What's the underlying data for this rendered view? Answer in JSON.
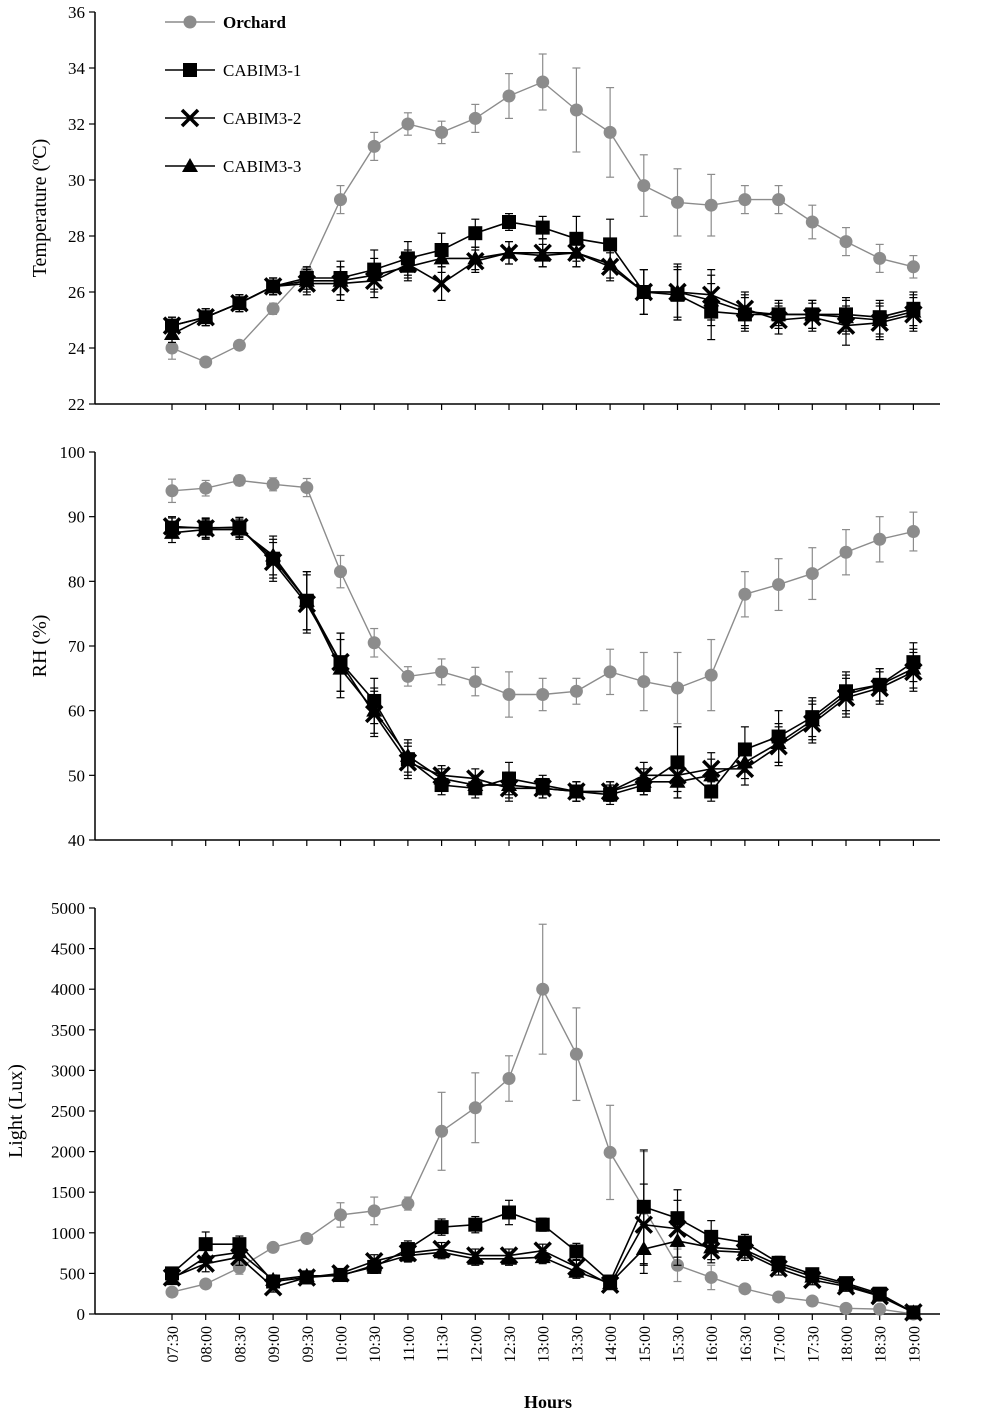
{
  "colors": {
    "orchard": "#8c8c8c",
    "cabim": "#000000",
    "axis": "#000000"
  },
  "legend": {
    "position": "top-left",
    "entries": [
      {
        "label": "Orchard",
        "marker": "circle"
      },
      {
        "label": "CABIM3-1",
        "marker": "square"
      },
      {
        "label": "CABIM3-2",
        "marker": "cross"
      },
      {
        "label": "CABIM3-3",
        "marker": "triangle"
      }
    ]
  },
  "chart_data": [
    {
      "type": "line",
      "ylabel": "Temperature (ºC)",
      "ylim": [
        22,
        36
      ],
      "yticks": [
        22,
        24,
        26,
        28,
        30,
        32,
        34,
        36
      ],
      "error_bars": true,
      "series": [
        {
          "name": "Orchard",
          "marker": "circle",
          "values": [
            24.0,
            23.5,
            24.1,
            25.4,
            26.7,
            29.3,
            31.2,
            32.0,
            31.7,
            32.2,
            33.0,
            33.5,
            32.5,
            31.7,
            29.8,
            29.2,
            29.1,
            29.3,
            29.3,
            28.5,
            27.8,
            27.2,
            26.9
          ],
          "errors": [
            0.4,
            0.1,
            0.1,
            0.2,
            0.2,
            0.5,
            0.5,
            0.4,
            0.4,
            0.5,
            0.8,
            1.0,
            1.5,
            1.6,
            1.1,
            1.2,
            1.1,
            0.5,
            0.5,
            0.6,
            0.5,
            0.5,
            0.4
          ]
        },
        {
          "name": "CABIM3-1",
          "marker": "square",
          "values": [
            24.8,
            25.1,
            25.6,
            26.2,
            26.5,
            26.5,
            26.8,
            27.2,
            27.5,
            28.1,
            28.5,
            28.3,
            27.9,
            27.7,
            26.0,
            25.9,
            25.3,
            25.2,
            25.2,
            25.2,
            25.2,
            25.1,
            25.4
          ],
          "errors": [
            0.3,
            0.3,
            0.3,
            0.3,
            0.4,
            0.6,
            0.7,
            0.6,
            0.6,
            0.5,
            0.3,
            0.4,
            0.8,
            0.9,
            0.8,
            0.9,
            1.0,
            0.6,
            0.4,
            0.5,
            0.6,
            0.6,
            0.6
          ]
        },
        {
          "name": "CABIM3-2",
          "marker": "cross",
          "values": [
            24.8,
            25.1,
            25.6,
            26.2,
            26.3,
            26.3,
            26.4,
            27.0,
            26.3,
            27.1,
            27.4,
            27.4,
            27.4,
            26.9,
            26.0,
            26.0,
            25.9,
            25.4,
            25.0,
            25.1,
            24.8,
            24.9,
            25.2
          ],
          "errors": [
            0.3,
            0.3,
            0.3,
            0.3,
            0.4,
            0.6,
            0.6,
            0.5,
            0.6,
            0.4,
            0.4,
            0.5,
            0.5,
            0.5,
            0.8,
            1.0,
            0.9,
            0.6,
            0.5,
            0.5,
            0.7,
            0.6,
            0.6
          ]
        },
        {
          "name": "CABIM3-3",
          "marker": "triangle",
          "values": [
            24.5,
            25.1,
            25.6,
            26.2,
            26.4,
            26.4,
            26.6,
            26.9,
            27.2,
            27.2,
            27.4,
            27.3,
            27.4,
            27.0,
            26.0,
            26.0,
            25.7,
            25.3,
            25.2,
            25.2,
            25.1,
            25.0,
            25.3
          ],
          "errors": [
            0.3,
            0.3,
            0.3,
            0.3,
            0.4,
            0.5,
            0.6,
            0.5,
            0.5,
            0.4,
            0.4,
            0.4,
            0.5,
            0.5,
            0.8,
            0.9,
            0.9,
            0.6,
            0.5,
            0.5,
            0.6,
            0.6,
            0.6
          ]
        }
      ]
    },
    {
      "type": "line",
      "ylabel": "RH (%)",
      "ylim": [
        40,
        100
      ],
      "yticks": [
        40,
        50,
        60,
        70,
        80,
        90,
        100
      ],
      "error_bars": true,
      "series": [
        {
          "name": "Orchard",
          "marker": "circle",
          "values": [
            94.0,
            94.4,
            95.6,
            95.0,
            94.5,
            81.5,
            70.5,
            65.3,
            66.0,
            64.5,
            62.5,
            62.5,
            63.0,
            66.0,
            64.5,
            63.5,
            65.5,
            78.0,
            79.5,
            81.2,
            84.5,
            86.5,
            87.7
          ],
          "errors": [
            1.8,
            1.2,
            0.8,
            1.0,
            1.4,
            2.5,
            2.2,
            1.5,
            2.0,
            2.2,
            3.5,
            2.5,
            2.0,
            3.5,
            4.5,
            5.5,
            5.5,
            3.5,
            4.0,
            4.0,
            3.5,
            3.5,
            3.0
          ]
        },
        {
          "name": "CABIM3-1",
          "marker": "square",
          "values": [
            88.3,
            88.3,
            88.3,
            83.5,
            77.0,
            67.5,
            61.5,
            52.5,
            48.5,
            48.0,
            49.5,
            48.5,
            47.5,
            47.0,
            48.5,
            52.0,
            47.5,
            54.0,
            56.0,
            59.0,
            63.0,
            64.0,
            67.5
          ],
          "errors": [
            1.5,
            1.5,
            1.5,
            3.0,
            4.5,
            4.5,
            3.5,
            2.5,
            1.5,
            1.5,
            2.5,
            1.5,
            1.5,
            1.5,
            1.5,
            5.5,
            1.5,
            3.5,
            4.0,
            3.0,
            3.0,
            2.5,
            3.0
          ]
        },
        {
          "name": "CABIM3-2",
          "marker": "cross",
          "values": [
            88.5,
            88.2,
            88.4,
            83.0,
            76.5,
            67.5,
            59.5,
            52.0,
            50.0,
            49.5,
            48.0,
            48.0,
            47.5,
            47.5,
            50.0,
            50.0,
            51.0,
            51.0,
            54.5,
            58.0,
            62.0,
            63.5,
            66.0
          ],
          "errors": [
            1.5,
            1.5,
            1.5,
            3.0,
            4.5,
            4.5,
            3.5,
            2.5,
            1.5,
            1.5,
            2.0,
            1.5,
            1.5,
            1.5,
            2.0,
            2.5,
            2.5,
            2.5,
            3.0,
            3.0,
            3.0,
            2.5,
            3.0
          ]
        },
        {
          "name": "CABIM3-3",
          "marker": "triangle",
          "values": [
            87.5,
            88.0,
            88.0,
            84.0,
            77.0,
            66.5,
            60.0,
            53.0,
            49.5,
            48.5,
            48.5,
            48.0,
            47.5,
            47.5,
            49.0,
            49.0,
            50.0,
            52.0,
            55.0,
            58.5,
            62.5,
            64.0,
            66.5
          ],
          "errors": [
            1.5,
            1.5,
            1.5,
            3.0,
            4.5,
            4.5,
            3.5,
            2.5,
            1.5,
            1.5,
            2.0,
            1.5,
            1.5,
            1.5,
            2.0,
            2.5,
            2.5,
            2.5,
            3.0,
            3.0,
            3.0,
            2.5,
            3.0
          ]
        }
      ]
    },
    {
      "type": "line",
      "xlabel": "Hours",
      "ylabel": "Light (Lux)",
      "ylim": [
        0,
        5000
      ],
      "yticks": [
        0,
        500,
        1000,
        1500,
        2000,
        2500,
        3000,
        3500,
        4000,
        4500,
        5000
      ],
      "categories": [
        "07:30",
        "08:00",
        "08:30",
        "09:00",
        "09:30",
        "10:00",
        "10:30",
        "11:00",
        "11:30",
        "12:00",
        "12:30",
        "13:00",
        "13:30",
        "14:00",
        "15:00",
        "15:30",
        "16:00",
        "16:30",
        "17:00",
        "17:30",
        "18:00",
        "18:30",
        "19:00"
      ],
      "error_bars": true,
      "series": [
        {
          "name": "Orchard",
          "marker": "circle",
          "values": [
            270,
            370,
            570,
            820,
            930,
            1220,
            1270,
            1360,
            2250,
            2540,
            2900,
            4000,
            3200,
            1990,
            1300,
            600,
            450,
            310,
            210,
            160,
            70,
            60,
            0
          ],
          "errors": [
            40,
            40,
            80,
            40,
            40,
            150,
            170,
            80,
            480,
            430,
            280,
            800,
            570,
            580,
            700,
            200,
            150,
            50,
            30,
            30,
            20,
            20,
            0
          ]
        },
        {
          "name": "CABIM3-1",
          "marker": "square",
          "values": [
            500,
            860,
            860,
            400,
            450,
            480,
            580,
            800,
            1070,
            1100,
            1250,
            1100,
            770,
            400,
            1320,
            1180,
            950,
            880,
            630,
            490,
            380,
            250,
            20
          ],
          "errors": [
            60,
            150,
            100,
            60,
            60,
            60,
            80,
            100,
            100,
            100,
            150,
            80,
            100,
            60,
            700,
            350,
            200,
            100,
            80,
            60,
            60,
            60,
            20
          ]
        },
        {
          "name": "CABIM3-2",
          "marker": "cross",
          "values": [
            450,
            620,
            700,
            330,
            450,
            500,
            650,
            750,
            800,
            720,
            720,
            780,
            580,
            360,
            1100,
            1050,
            780,
            760,
            560,
            420,
            340,
            220,
            20
          ],
          "errors": [
            60,
            100,
            100,
            60,
            60,
            60,
            80,
            80,
            80,
            80,
            80,
            80,
            80,
            60,
            500,
            350,
            150,
            100,
            80,
            60,
            60,
            60,
            20
          ]
        },
        {
          "name": "CABIM3-3",
          "marker": "triangle",
          "values": [
            430,
            700,
            760,
            420,
            470,
            470,
            600,
            720,
            760,
            680,
            680,
            700,
            520,
            380,
            800,
            900,
            820,
            790,
            600,
            460,
            360,
            230,
            20
          ],
          "errors": [
            60,
            100,
            100,
            60,
            60,
            60,
            80,
            80,
            80,
            80,
            80,
            80,
            80,
            60,
            300,
            300,
            150,
            100,
            80,
            60,
            60,
            60,
            20
          ]
        }
      ]
    }
  ]
}
